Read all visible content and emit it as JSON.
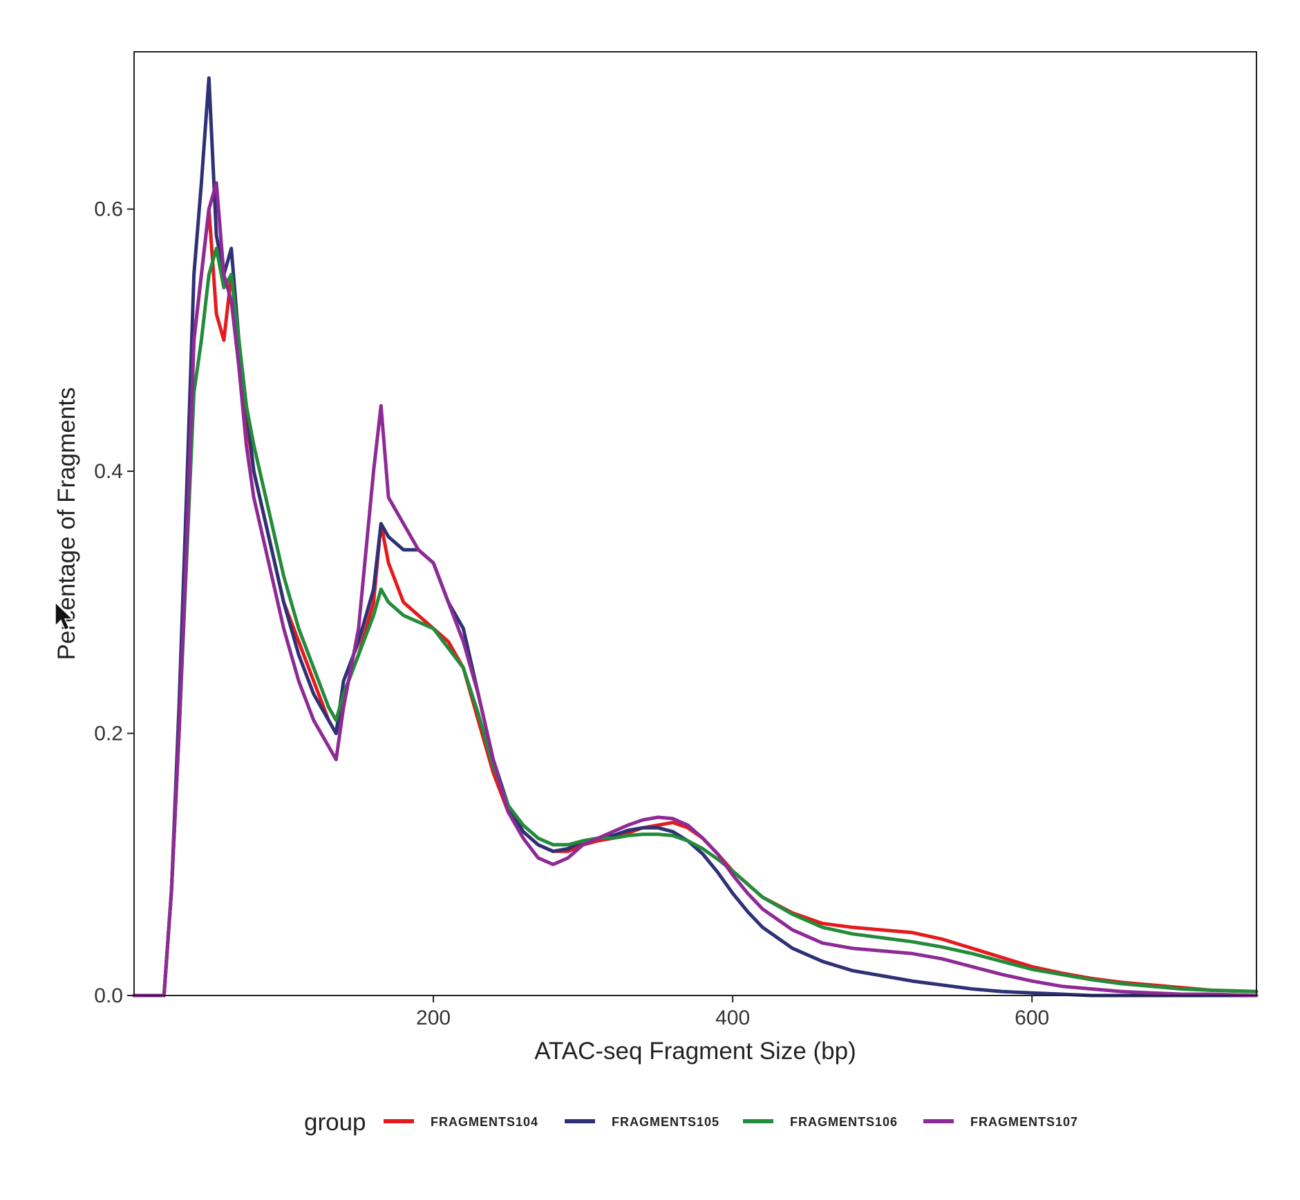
{
  "chart_data": {
    "type": "line",
    "title": "",
    "xlabel": "ATAC-seq Fragment Size (bp)",
    "ylabel": "Percentage of Fragments",
    "xlim": [
      0,
      750
    ],
    "ylim": [
      0,
      0.72
    ],
    "x_ticks": [
      200,
      400,
      600
    ],
    "y_ticks": [
      0.0,
      0.2,
      0.4,
      0.6
    ],
    "x_tick_labels": [
      "200",
      "400",
      "600"
    ],
    "y_tick_labels": [
      "0.0",
      "0.2",
      "0.4",
      "0.6"
    ],
    "grid": false,
    "legend": {
      "title": "group",
      "position": "bottom"
    },
    "x": [
      0,
      10,
      20,
      25,
      30,
      35,
      40,
      45,
      50,
      55,
      60,
      65,
      70,
      75,
      80,
      90,
      100,
      110,
      120,
      130,
      135,
      140,
      150,
      160,
      165,
      170,
      180,
      190,
      200,
      210,
      220,
      230,
      240,
      250,
      260,
      270,
      280,
      290,
      300,
      310,
      320,
      330,
      340,
      350,
      360,
      370,
      380,
      390,
      400,
      410,
      420,
      440,
      460,
      480,
      500,
      520,
      540,
      560,
      580,
      600,
      620,
      640,
      660,
      680,
      700,
      720,
      750
    ],
    "series": [
      {
        "name": "FRAGMENTS104",
        "color": "#e41a1c",
        "values": [
          0,
          0,
          0,
          0.08,
          0.2,
          0.34,
          0.5,
          0.55,
          0.6,
          0.52,
          0.5,
          0.55,
          0.5,
          0.44,
          0.4,
          0.35,
          0.3,
          0.27,
          0.24,
          0.21,
          0.2,
          0.23,
          0.26,
          0.3,
          0.36,
          0.33,
          0.3,
          0.29,
          0.28,
          0.27,
          0.25,
          0.21,
          0.17,
          0.14,
          0.125,
          0.115,
          0.11,
          0.11,
          0.115,
          0.118,
          0.12,
          0.124,
          0.128,
          0.13,
          0.132,
          0.128,
          0.12,
          0.108,
          0.095,
          0.085,
          0.075,
          0.063,
          0.055,
          0.052,
          0.05,
          0.048,
          0.043,
          0.036,
          0.029,
          0.022,
          0.017,
          0.013,
          0.01,
          0.008,
          0.006,
          0.004,
          0.003
        ]
      },
      {
        "name": "FRAGMENTS105",
        "color": "#2e3175",
        "values": [
          0,
          0,
          0,
          0.08,
          0.22,
          0.38,
          0.55,
          0.62,
          0.7,
          0.58,
          0.55,
          0.57,
          0.5,
          0.45,
          0.4,
          0.35,
          0.3,
          0.26,
          0.23,
          0.21,
          0.2,
          0.24,
          0.27,
          0.31,
          0.36,
          0.35,
          0.34,
          0.34,
          0.33,
          0.3,
          0.28,
          0.23,
          0.18,
          0.145,
          0.125,
          0.115,
          0.11,
          0.112,
          0.118,
          0.12,
          0.122,
          0.126,
          0.128,
          0.128,
          0.125,
          0.118,
          0.108,
          0.094,
          0.078,
          0.064,
          0.052,
          0.036,
          0.026,
          0.019,
          0.015,
          0.011,
          0.008,
          0.005,
          0.003,
          0.002,
          0.001,
          0,
          0,
          0,
          0,
          0,
          0
        ]
      },
      {
        "name": "FRAGMENTS106",
        "color": "#238b3a",
        "values": [
          0,
          0,
          0,
          0.08,
          0.2,
          0.33,
          0.46,
          0.5,
          0.55,
          0.57,
          0.54,
          0.55,
          0.5,
          0.45,
          0.42,
          0.37,
          0.32,
          0.28,
          0.25,
          0.22,
          0.21,
          0.23,
          0.26,
          0.29,
          0.31,
          0.3,
          0.29,
          0.285,
          0.28,
          0.265,
          0.25,
          0.215,
          0.175,
          0.145,
          0.13,
          0.12,
          0.115,
          0.115,
          0.118,
          0.12,
          0.12,
          0.122,
          0.123,
          0.123,
          0.122,
          0.118,
          0.112,
          0.104,
          0.095,
          0.085,
          0.075,
          0.062,
          0.052,
          0.047,
          0.044,
          0.041,
          0.037,
          0.032,
          0.026,
          0.02,
          0.016,
          0.012,
          0.009,
          0.007,
          0.005,
          0.004,
          0.003
        ]
      },
      {
        "name": "FRAGMENTS107",
        "color": "#8e2a96",
        "values": [
          0,
          0,
          0,
          0.08,
          0.2,
          0.34,
          0.5,
          0.55,
          0.6,
          0.62,
          0.55,
          0.53,
          0.48,
          0.42,
          0.38,
          0.33,
          0.28,
          0.24,
          0.21,
          0.19,
          0.18,
          0.22,
          0.28,
          0.4,
          0.45,
          0.38,
          0.36,
          0.34,
          0.33,
          0.3,
          0.27,
          0.23,
          0.18,
          0.14,
          0.12,
          0.105,
          0.1,
          0.105,
          0.115,
          0.12,
          0.125,
          0.13,
          0.134,
          0.136,
          0.135,
          0.13,
          0.12,
          0.108,
          0.092,
          0.078,
          0.066,
          0.05,
          0.04,
          0.036,
          0.034,
          0.032,
          0.028,
          0.022,
          0.016,
          0.011,
          0.007,
          0.005,
          0.003,
          0.002,
          0.001,
          0.001,
          0
        ]
      }
    ]
  }
}
